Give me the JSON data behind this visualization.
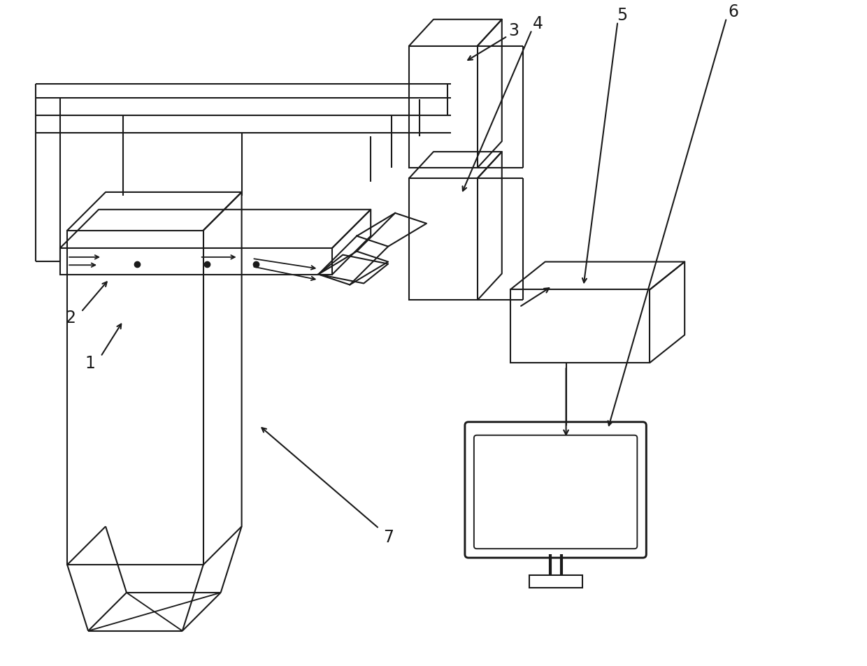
{
  "bg_color": "#ffffff",
  "line_color": "#1a1a1a",
  "lw": 1.5,
  "fig_width": 12.4,
  "fig_height": 9.54
}
